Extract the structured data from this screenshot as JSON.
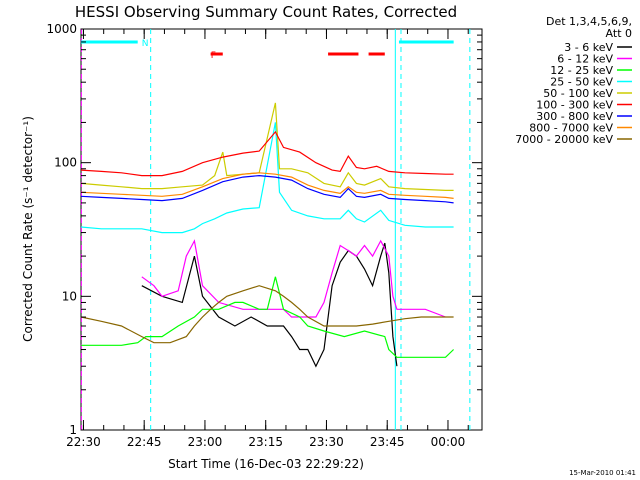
{
  "chart_data": {
    "type": "line",
    "title": "HESSI Observing Summary Count Rates, Corrected",
    "xlabel": "Start Time (16-Dec-03 22:29:22)",
    "ylabel": "Corrected Count Rate (s⁻¹ detector⁻¹)",
    "yscale": "log",
    "ylim": [
      1,
      1000
    ],
    "xlim_minutes": [
      0,
      99
    ],
    "x_ticks": [
      {
        "label": "22:30",
        "m": 0.6
      },
      {
        "label": "22:45",
        "m": 15.6
      },
      {
        "label": "23:00",
        "m": 30.6
      },
      {
        "label": "23:15",
        "m": 45.6
      },
      {
        "label": "23:30",
        "m": 60.6
      },
      {
        "label": "23:45",
        "m": 75.6
      },
      {
        "label": "00:00",
        "m": 90.6
      }
    ],
    "y_ticks": [
      {
        "label": "1",
        "v": 1
      },
      {
        "label": "10",
        "v": 10
      },
      {
        "label": "100",
        "v": 100
      },
      {
        "label": "1000",
        "v": 1000
      }
    ],
    "legend_header": [
      "Det 1,3,4,5,6,9,",
      "Att 0"
    ],
    "legend_position": "right",
    "series": [
      {
        "name": "3 - 6 keV",
        "color": "#000000",
        "points": [
          [
            15,
            12
          ],
          [
            20,
            10
          ],
          [
            25,
            9
          ],
          [
            28,
            20
          ],
          [
            30,
            10
          ],
          [
            34,
            7
          ],
          [
            38,
            6
          ],
          [
            42,
            7
          ],
          [
            46,
            6
          ],
          [
            50,
            6
          ],
          [
            52,
            5
          ],
          [
            54,
            4
          ],
          [
            56,
            4
          ],
          [
            58,
            3
          ],
          [
            60,
            4
          ],
          [
            62,
            12
          ],
          [
            64,
            18
          ],
          [
            66,
            22
          ],
          [
            68,
            20
          ],
          [
            70,
            16
          ],
          [
            72,
            12
          ],
          [
            74,
            20
          ],
          [
            75,
            25
          ],
          [
            76,
            15
          ],
          [
            77,
            5
          ],
          [
            78,
            3
          ]
        ]
      },
      {
        "name": "6 - 12 keV",
        "color": "#ff00ff",
        "points": [
          [
            15,
            14
          ],
          [
            18,
            12
          ],
          [
            20,
            10
          ],
          [
            24,
            11
          ],
          [
            26,
            20
          ],
          [
            28,
            26
          ],
          [
            30,
            12
          ],
          [
            34,
            9
          ],
          [
            40,
            8
          ],
          [
            46,
            8
          ],
          [
            50,
            8
          ],
          [
            52,
            7
          ],
          [
            54,
            7
          ],
          [
            56,
            7
          ],
          [
            58,
            7
          ],
          [
            60,
            9
          ],
          [
            62,
            15
          ],
          [
            64,
            24
          ],
          [
            66,
            22
          ],
          [
            68,
            20
          ],
          [
            70,
            24
          ],
          [
            72,
            20
          ],
          [
            74,
            26
          ],
          [
            76,
            20
          ],
          [
            77,
            10
          ],
          [
            78,
            8
          ],
          [
            85,
            8
          ],
          [
            90,
            7
          ]
        ]
      },
      {
        "name": "12 - 25 keV",
        "color": "#00ff00",
        "points": [
          [
            0,
            4.3
          ],
          [
            5,
            4.3
          ],
          [
            10,
            4.3
          ],
          [
            14,
            4.5
          ],
          [
            16,
            5
          ],
          [
            20,
            5
          ],
          [
            24,
            6
          ],
          [
            28,
            7
          ],
          [
            30,
            8
          ],
          [
            34,
            8
          ],
          [
            38,
            9
          ],
          [
            40,
            9
          ],
          [
            44,
            8
          ],
          [
            46,
            8
          ],
          [
            48,
            14
          ],
          [
            50,
            8
          ],
          [
            54,
            7
          ],
          [
            56,
            6
          ],
          [
            60,
            5.5
          ],
          [
            65,
            5
          ],
          [
            70,
            5.5
          ],
          [
            75,
            5
          ],
          [
            76,
            4
          ],
          [
            78,
            3.5
          ],
          [
            82,
            3.5
          ],
          [
            90,
            3.5
          ],
          [
            92,
            4
          ]
        ]
      },
      {
        "name": "25 - 50 keV",
        "color": "#00ffff",
        "points": [
          [
            0,
            33
          ],
          [
            5,
            32
          ],
          [
            10,
            32
          ],
          [
            15,
            32
          ],
          [
            20,
            30
          ],
          [
            25,
            30
          ],
          [
            28,
            32
          ],
          [
            30,
            35
          ],
          [
            33,
            38
          ],
          [
            36,
            42
          ],
          [
            40,
            45
          ],
          [
            44,
            46
          ],
          [
            48,
            200
          ],
          [
            49,
            60
          ],
          [
            52,
            44
          ],
          [
            56,
            40
          ],
          [
            60,
            38
          ],
          [
            64,
            38
          ],
          [
            66,
            44
          ],
          [
            68,
            38
          ],
          [
            70,
            36
          ],
          [
            74,
            44
          ],
          [
            76,
            37
          ],
          [
            80,
            34
          ],
          [
            85,
            33
          ],
          [
            90,
            33
          ],
          [
            92,
            33
          ]
        ]
      },
      {
        "name": "50 - 100 keV",
        "color": "#cccc00",
        "points": [
          [
            0,
            70
          ],
          [
            5,
            68
          ],
          [
            10,
            66
          ],
          [
            15,
            64
          ],
          [
            20,
            64
          ],
          [
            25,
            66
          ],
          [
            30,
            68
          ],
          [
            33,
            80
          ],
          [
            35,
            120
          ],
          [
            36,
            80
          ],
          [
            40,
            82
          ],
          [
            44,
            84
          ],
          [
            48,
            280
          ],
          [
            49,
            90
          ],
          [
            52,
            90
          ],
          [
            56,
            84
          ],
          [
            60,
            70
          ],
          [
            64,
            66
          ],
          [
            66,
            84
          ],
          [
            68,
            70
          ],
          [
            70,
            68
          ],
          [
            74,
            76
          ],
          [
            76,
            66
          ],
          [
            80,
            64
          ],
          [
            85,
            63
          ],
          [
            90,
            62
          ],
          [
            92,
            62
          ]
        ]
      },
      {
        "name": "100 - 300 keV",
        "color": "#ff0000",
        "points": [
          [
            0,
            88
          ],
          [
            5,
            86
          ],
          [
            10,
            84
          ],
          [
            15,
            80
          ],
          [
            20,
            80
          ],
          [
            25,
            86
          ],
          [
            30,
            100
          ],
          [
            35,
            110
          ],
          [
            40,
            118
          ],
          [
            44,
            122
          ],
          [
            48,
            170
          ],
          [
            50,
            130
          ],
          [
            54,
            120
          ],
          [
            58,
            100
          ],
          [
            62,
            88
          ],
          [
            64,
            86
          ],
          [
            66,
            112
          ],
          [
            68,
            92
          ],
          [
            70,
            90
          ],
          [
            73,
            94
          ],
          [
            76,
            86
          ],
          [
            80,
            84
          ],
          [
            85,
            83
          ],
          [
            90,
            82
          ],
          [
            92,
            82
          ]
        ]
      },
      {
        "name": "300 - 800 keV",
        "color": "#0000ff",
        "points": [
          [
            0,
            56
          ],
          [
            5,
            55
          ],
          [
            10,
            54
          ],
          [
            15,
            53
          ],
          [
            20,
            52
          ],
          [
            25,
            54
          ],
          [
            30,
            62
          ],
          [
            35,
            72
          ],
          [
            40,
            78
          ],
          [
            44,
            80
          ],
          [
            48,
            78
          ],
          [
            52,
            74
          ],
          [
            56,
            64
          ],
          [
            60,
            58
          ],
          [
            64,
            55
          ],
          [
            66,
            64
          ],
          [
            68,
            56
          ],
          [
            70,
            55
          ],
          [
            74,
            58
          ],
          [
            76,
            54
          ],
          [
            80,
            53
          ],
          [
            85,
            52
          ],
          [
            90,
            51
          ],
          [
            92,
            50
          ]
        ]
      },
      {
        "name": "800 - 7000 keV",
        "color": "#ff8800",
        "points": [
          [
            0,
            60
          ],
          [
            5,
            59
          ],
          [
            10,
            58
          ],
          [
            15,
            57
          ],
          [
            20,
            56
          ],
          [
            25,
            58
          ],
          [
            30,
            66
          ],
          [
            35,
            76
          ],
          [
            40,
            82
          ],
          [
            44,
            84
          ],
          [
            48,
            82
          ],
          [
            52,
            78
          ],
          [
            56,
            68
          ],
          [
            60,
            62
          ],
          [
            64,
            59
          ],
          [
            66,
            66
          ],
          [
            68,
            60
          ],
          [
            70,
            59
          ],
          [
            74,
            62
          ],
          [
            76,
            58
          ],
          [
            80,
            57
          ],
          [
            85,
            56
          ],
          [
            90,
            55
          ],
          [
            92,
            54
          ]
        ]
      },
      {
        "name": "7000 - 20000 keV",
        "color": "#886600",
        "points": [
          [
            0,
            7
          ],
          [
            5,
            6.5
          ],
          [
            10,
            6
          ],
          [
            15,
            5
          ],
          [
            18,
            4.5
          ],
          [
            20,
            4.5
          ],
          [
            22,
            4.5
          ],
          [
            26,
            5
          ],
          [
            28,
            6
          ],
          [
            30,
            7
          ],
          [
            32,
            8
          ],
          [
            34,
            9
          ],
          [
            36,
            10
          ],
          [
            40,
            11
          ],
          [
            44,
            12
          ],
          [
            48,
            11
          ],
          [
            50,
            10
          ],
          [
            52,
            9
          ],
          [
            54,
            8
          ],
          [
            56,
            7
          ],
          [
            60,
            6
          ],
          [
            64,
            6
          ],
          [
            68,
            6
          ],
          [
            72,
            6.2
          ],
          [
            76,
            6.5
          ],
          [
            80,
            6.8
          ],
          [
            84,
            7
          ],
          [
            88,
            7
          ],
          [
            92,
            7
          ]
        ]
      }
    ],
    "flag_bars": [
      {
        "label": "N",
        "color": "#00ffff",
        "y_value": 800,
        "segments": [
          [
            0,
            14
          ],
          [
            78.5,
            92
          ]
        ]
      },
      {
        "label": "F",
        "color": "#ff0000",
        "y_value": 650,
        "segments": [
          [
            32,
            35
          ],
          [
            61,
            68.5
          ],
          [
            71,
            75
          ]
        ]
      }
    ],
    "vlines": [
      {
        "m": 17.2,
        "color": "#00ffff",
        "style": "dashed"
      },
      {
        "m": 77.6,
        "color": "#00ffff",
        "style": "solid"
      },
      {
        "m": 79.0,
        "color": "#00ffff",
        "style": "dashed"
      },
      {
        "m": 96.0,
        "color": "#00ffff",
        "style": "dashed"
      },
      {
        "m": 0.1,
        "color": "#ff00ff",
        "style": "dashed"
      }
    ]
  },
  "timestamp": "15-Mar-2010 01:41"
}
